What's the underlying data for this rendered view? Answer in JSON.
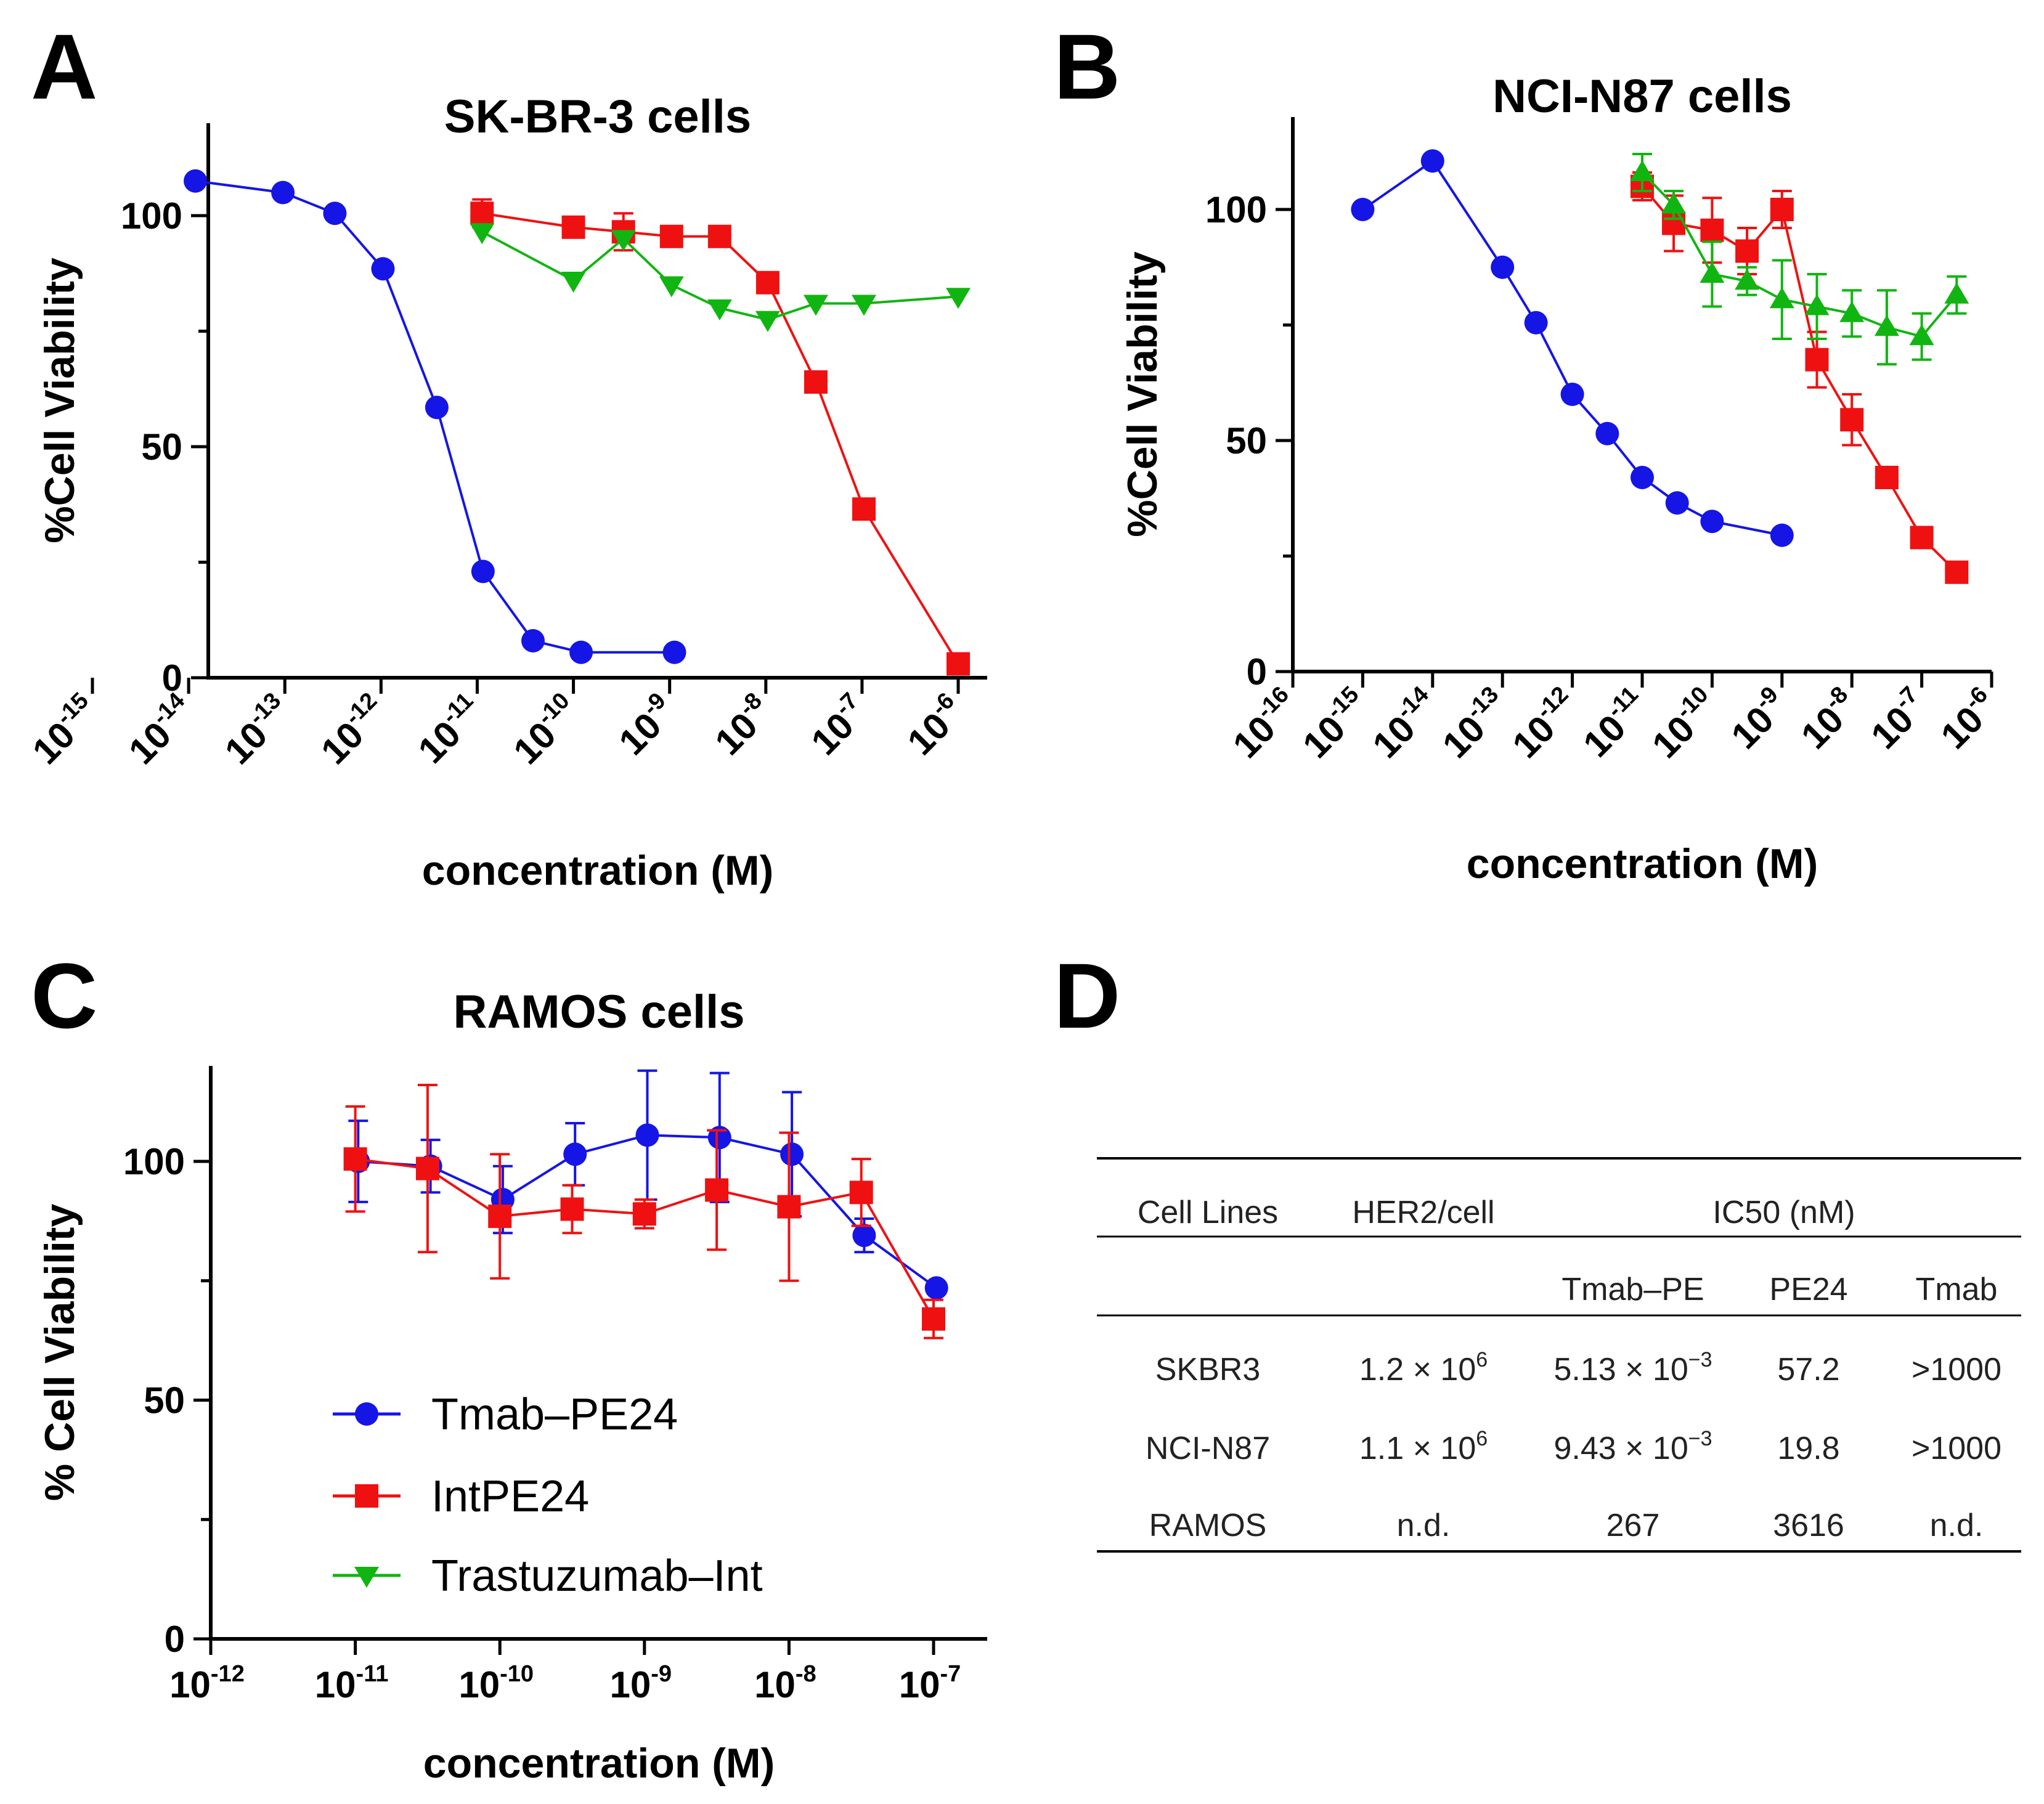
{
  "palette": {
    "blue": "#1515e6",
    "red": "#ef1111",
    "green": "#11b511",
    "axis": "#000000"
  },
  "legend": [
    {
      "label": "Tmab–PE24",
      "color": "#1515e6",
      "marker": "circle"
    },
    {
      "label": "IntPE24",
      "color": "#ef1111",
      "marker": "square"
    },
    {
      "label": "Trastuzumab–Int",
      "color": "#11b511",
      "marker": "triangle-down"
    }
  ],
  "chart_data": [
    {
      "panel": "A",
      "type": "line",
      "title": "SK-BR-3 cells",
      "xlabel": "concentration (M)",
      "ylabel": "%Cell Viability",
      "xscale": "log10",
      "xlim_exp": [
        -15,
        -6
      ],
      "xticks_exp": [
        -15,
        -14,
        -13,
        -12,
        -11,
        -10,
        -9,
        -8,
        -7,
        -6
      ],
      "ylim": [
        0,
        120
      ],
      "yticks": [
        0,
        50,
        100
      ],
      "grid": false,
      "series": [
        {
          "name": "Tmab–PE24",
          "color": "#1515e6",
          "marker": "circle",
          "x_exp": [
            -13.93,
            -13.02,
            -12.48,
            -11.98,
            -11.42,
            -10.94,
            -10.42,
            -9.92,
            -8.95
          ],
          "y": [
            107.5,
            105,
            100.5,
            88.5,
            58.5,
            23,
            8,
            5.5,
            5.5
          ]
        },
        {
          "name": "IntPE24",
          "color": "#ef1111",
          "marker": "square",
          "x_exp": [
            -10.95,
            -10.0,
            -9.48,
            -8.98,
            -8.48,
            -7.98,
            -7.48,
            -6.98,
            -6.0
          ],
          "y": [
            100.5,
            97.5,
            96.5,
            95.5,
            95.5,
            85.5,
            64,
            36.5,
            3
          ],
          "err": [
            3,
            0,
            4,
            0,
            0,
            0,
            0,
            0,
            0
          ]
        },
        {
          "name": "Trastuzumab–Int",
          "color": "#11b511",
          "marker": "triangle-down",
          "x_exp": [
            -10.95,
            -10.0,
            -9.48,
            -8.98,
            -8.48,
            -7.98,
            -7.48,
            -6.98,
            -6.0
          ],
          "y": [
            96.5,
            86,
            95,
            85,
            80,
            77.5,
            81,
            81,
            82.5
          ]
        }
      ]
    },
    {
      "panel": "B",
      "type": "line",
      "title": "NCI-N87 cells",
      "xlabel": "concentration (M)",
      "ylabel": "%Cell Viability",
      "xscale": "log10",
      "xlim_exp": [
        -16,
        -6
      ],
      "xticks_exp": [
        -16,
        -15,
        -14,
        -13,
        -12,
        -11,
        -10,
        -9,
        -8,
        -7,
        -6
      ],
      "ylim": [
        0,
        120
      ],
      "yticks": [
        0,
        50,
        100
      ],
      "grid": false,
      "series": [
        {
          "name": "Tmab–PE24",
          "color": "#1515e6",
          "marker": "circle",
          "x_exp": [
            -15.0,
            -14.0,
            -13.0,
            -12.52,
            -12.0,
            -11.5,
            -11.0,
            -10.5,
            -10.0,
            -9.0
          ],
          "y": [
            100,
            110.5,
            87.5,
            75.5,
            60,
            51.5,
            42,
            36.5,
            32.5,
            29.5
          ]
        },
        {
          "name": "IntPE24",
          "color": "#ef1111",
          "marker": "square",
          "x_exp": [
            -11.0,
            -10.55,
            -10.0,
            -9.5,
            -9.0,
            -8.5,
            -8.0,
            -7.5,
            -7.0,
            -6.5
          ],
          "y": [
            105,
            97,
            95.5,
            91,
            100,
            67.5,
            54.5,
            42,
            29,
            21.5
          ],
          "err": [
            3,
            6,
            7,
            5,
            4,
            6,
            5.5,
            0,
            0,
            0
          ]
        },
        {
          "name": "Trastuzumab–Int",
          "color": "#11b511",
          "marker": "triangle-up",
          "x_exp": [
            -11.0,
            -10.55,
            -10.0,
            -9.5,
            -9.0,
            -8.5,
            -8.0,
            -7.5,
            -7.0,
            -6.5
          ],
          "y": [
            108,
            101,
            86,
            84.5,
            80.5,
            79,
            77.5,
            74.5,
            72.5,
            81.5
          ],
          "err": [
            4,
            3,
            7,
            3,
            8.5,
            7,
            5,
            8,
            5,
            4
          ]
        }
      ]
    },
    {
      "panel": "C",
      "type": "line",
      "title": "RAMOS cells",
      "xlabel": "concentration (M)",
      "ylabel": "% Cell Viability",
      "xscale": "log10",
      "xlim_exp": [
        -12,
        -7
      ],
      "xticks_exp": [
        -12,
        -11,
        -10,
        -9,
        -8,
        -7
      ],
      "ylim": [
        0,
        120
      ],
      "yticks": [
        0,
        50,
        100
      ],
      "grid": false,
      "series": [
        {
          "name": "Tmab–PE24",
          "color": "#1515e6",
          "marker": "circle",
          "x_exp": [
            -10.98,
            -10.48,
            -9.98,
            -9.48,
            -8.98,
            -8.48,
            -7.98,
            -7.48,
            -6.98
          ],
          "y": [
            100,
            99,
            92,
            101.5,
            105.5,
            105,
            101.5,
            84.5,
            73.5
          ],
          "err": [
            8.5,
            5.5,
            7,
            6.5,
            13.5,
            13.5,
            13,
            3.5,
            0
          ]
        },
        {
          "name": "IntPE24",
          "color": "#ef1111",
          "marker": "square",
          "x_exp": [
            -11.0,
            -10.5,
            -10.0,
            -9.5,
            -9.0,
            -8.5,
            -8.0,
            -7.5,
            -7.0
          ],
          "y": [
            100.5,
            98.5,
            88.5,
            90,
            89,
            94,
            90.5,
            93.5,
            67
          ],
          "err": [
            11,
            17.5,
            13,
            5,
            3,
            12.5,
            15.5,
            7,
            4
          ]
        }
      ]
    }
  ],
  "panels": {
    "A": {
      "letter": "A",
      "title": "SK-BR-3 cells",
      "xlabel": "concentration (M)",
      "ylabel": "%Cell Viability"
    },
    "B": {
      "letter": "B",
      "title": "NCI-N87 cells",
      "xlabel": "concentration (M)",
      "ylabel": "%Cell Viability"
    },
    "C": {
      "letter": "C",
      "title": "RAMOS cells",
      "xlabel": "concentration (M)",
      "ylabel": "% Cell Viability"
    },
    "D": {
      "letter": "D"
    }
  },
  "table": {
    "header_row1": [
      "Cell Lines",
      "HER2/cell",
      "IC50 (nM)"
    ],
    "header_row2": [
      "Tmab–PE",
      "PE24",
      "Tmab"
    ],
    "rows": [
      {
        "cell": "SKBR3",
        "her2_base": "1.2 × 10",
        "her2_exp": "6",
        "tmab_pe_base": "5.13 × 10",
        "tmab_pe_exp": "−3",
        "pe24": "57.2",
        "tmab": ">1000"
      },
      {
        "cell": "NCI-N87",
        "her2_base": "1.1 × 10",
        "her2_exp": "6",
        "tmab_pe_base": "9.43 × 10",
        "tmab_pe_exp": "−3",
        "pe24": "19.8",
        "tmab": ">1000"
      },
      {
        "cell": "RAMOS",
        "her2_base": "n.d.",
        "her2_exp": "",
        "tmab_pe_base": "267",
        "tmab_pe_exp": "",
        "pe24": "3616",
        "tmab": "n.d."
      }
    ]
  }
}
